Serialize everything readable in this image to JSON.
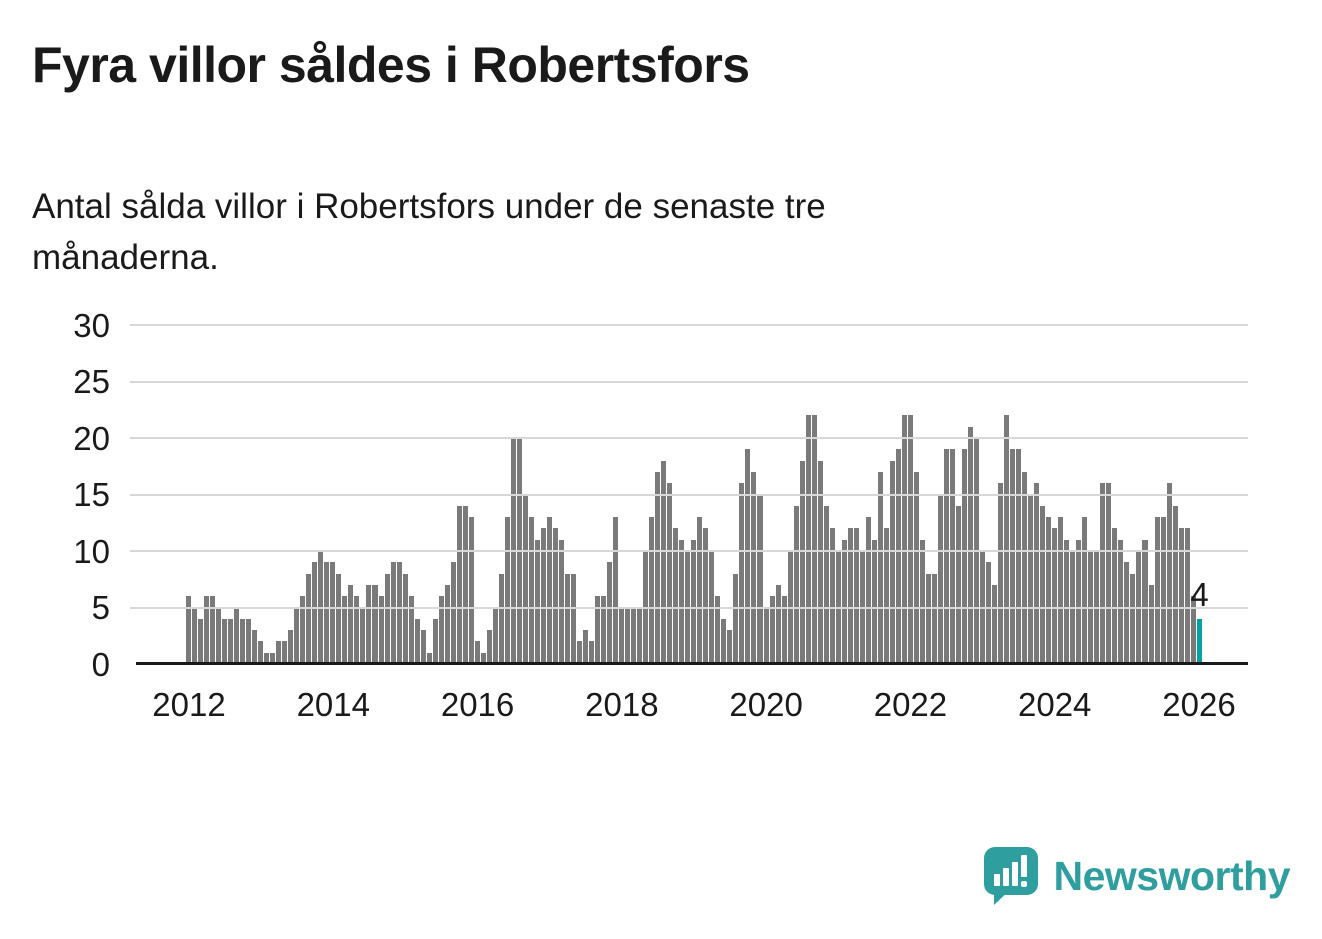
{
  "title": "Fyra villor såldes i Robertsfors",
  "subtitle_lines": [
    "Antal sålda villor i Robertsfors under de senaste tre",
    "månaderna."
  ],
  "branding": {
    "name": "Newsworthy"
  },
  "colors": {
    "bar": "#7a7a7a",
    "highlight": "#00a2a3",
    "brand": "#2f9e9f",
    "grid": "#d8d8d8",
    "axis": "#1a1a1a",
    "text": "#1a1a1a"
  },
  "chart_data": {
    "type": "bar",
    "title": "Fyra villor såldes i Robertsfors",
    "subtitle": "Antal sålda villor i Robertsfors under de senaste tre månaderna.",
    "x_start": "2012-01",
    "x_freq": "monthly",
    "ylim": [
      0,
      30
    ],
    "yticks": [
      0,
      5,
      10,
      15,
      20,
      25,
      30
    ],
    "grid": "horizontal",
    "legend": "none",
    "xticks": [
      {
        "label": "2012",
        "month_index": 0
      },
      {
        "label": "2014",
        "month_index": 24
      },
      {
        "label": "2016",
        "month_index": 48
      },
      {
        "label": "2018",
        "month_index": 72
      },
      {
        "label": "2020",
        "month_index": 96
      },
      {
        "label": "2022",
        "month_index": 120
      },
      {
        "label": "2024",
        "month_index": 144
      },
      {
        "label": "2026",
        "month_index": 168
      }
    ],
    "values": [
      6,
      5,
      4,
      6,
      6,
      5,
      4,
      4,
      5,
      4,
      4,
      3,
      2,
      1,
      1,
      2,
      2,
      3,
      5,
      6,
      8,
      9,
      10,
      9,
      9,
      8,
      6,
      7,
      6,
      5,
      7,
      7,
      6,
      8,
      9,
      9,
      8,
      6,
      4,
      3,
      1,
      4,
      6,
      7,
      9,
      14,
      14,
      13,
      2,
      1,
      3,
      5,
      8,
      13,
      20,
      20,
      15,
      13,
      11,
      12,
      13,
      12,
      11,
      8,
      8,
      2,
      3,
      2,
      6,
      6,
      9,
      13,
      5,
      5,
      5,
      5,
      10,
      13,
      17,
      18,
      16,
      12,
      11,
      10,
      11,
      13,
      12,
      10,
      6,
      4,
      3,
      8,
      16,
      19,
      17,
      15,
      5,
      6,
      7,
      6,
      10,
      14,
      18,
      22,
      22,
      18,
      14,
      12,
      10,
      11,
      12,
      12,
      10,
      13,
      11,
      17,
      12,
      18,
      19,
      22,
      22,
      17,
      11,
      8,
      8,
      15,
      19,
      19,
      14,
      19,
      21,
      20,
      10,
      9,
      7,
      16,
      22,
      19,
      19,
      17,
      15,
      16,
      14,
      13,
      12,
      13,
      11,
      10,
      11,
      13,
      10,
      10,
      16,
      16,
      12,
      11,
      9,
      8,
      10,
      11,
      7,
      13,
      13,
      16,
      14,
      12,
      12,
      6,
      4
    ],
    "highlight_index": 168,
    "highlight_value": 4,
    "annotation": {
      "text": "4",
      "index": 168
    }
  }
}
